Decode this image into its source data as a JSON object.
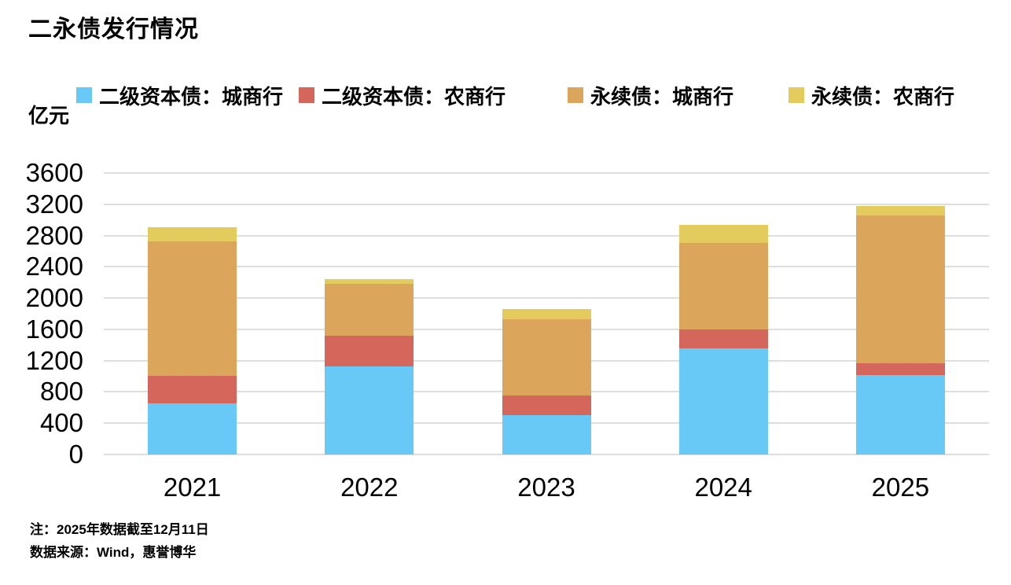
{
  "title": "二永债发行情况",
  "unit_label": "亿元",
  "legend": [
    {
      "label": "二级资本债：城商行",
      "color": "#68c9f6"
    },
    {
      "label": "二级资本债：农商行",
      "color": "#d5665c"
    },
    {
      "label": "永续债：城商行",
      "color": "#dba65b"
    },
    {
      "label": "永续债：农商行",
      "color": "#e3cb5e"
    }
  ],
  "notes": {
    "line1": "注：2025年数据截至12月11日",
    "line2": "数据来源：Wind，惠誉博华"
  },
  "colors": {
    "tier2_city": "#68c9f6",
    "tier2_rural": "#d5665c",
    "perpetual_city": "#dba65b",
    "perpetual_rural": "#e3cb5e",
    "gridline": "#dedede",
    "text": "#000000"
  },
  "chart_data": {
    "type": "bar",
    "stacked": true,
    "title": "二永债发行情况",
    "ylabel": "亿元",
    "xlabel": "",
    "ylim": [
      0,
      3600
    ],
    "ytick_step": 400,
    "yticks": [
      0,
      400,
      800,
      1200,
      1600,
      2000,
      2400,
      2800,
      3200,
      3600
    ],
    "grid": true,
    "legend_position": "top",
    "categories": [
      "2021",
      "2022",
      "2023",
      "2024",
      "2025"
    ],
    "series": [
      {
        "name": "二级资本债：城商行",
        "color": "#68c9f6",
        "values": [
          655,
          1130,
          500,
          1360,
          1020
        ]
      },
      {
        "name": "二级资本债：农商行",
        "color": "#d5665c",
        "values": [
          350,
          390,
          250,
          240,
          150
        ]
      },
      {
        "name": "永续债：城商行",
        "color": "#dba65b",
        "values": [
          1720,
          660,
          980,
          1100,
          1890
        ]
      },
      {
        "name": "永续债：农商行",
        "color": "#e3cb5e",
        "values": [
          185,
          60,
          135,
          240,
          120
        ]
      }
    ],
    "stack_totals": [
      2910,
      2240,
      1865,
      2940,
      3180
    ]
  }
}
